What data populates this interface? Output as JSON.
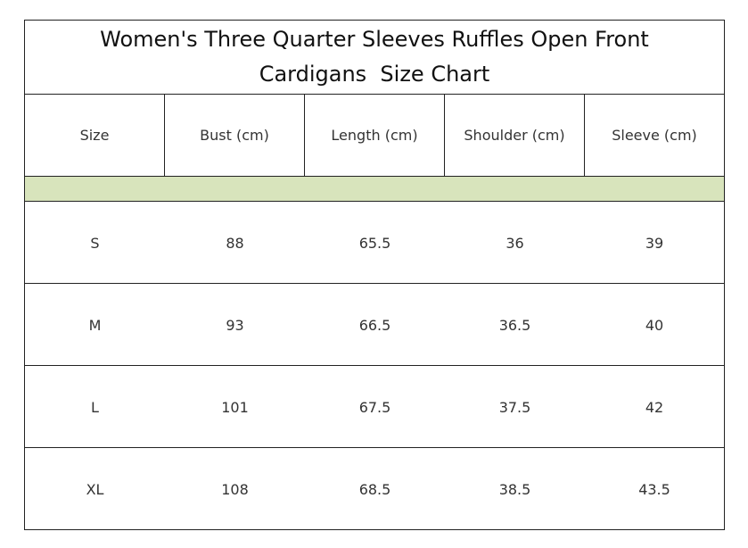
{
  "title": {
    "line1": "Women's Three Quarter Sleeves Ruffles Open Front",
    "line2": "Cardigans  Size Chart"
  },
  "table": {
    "headers": [
      "Size",
      "Bust (cm)",
      "Length (cm)",
      "Shoulder (cm)",
      "Sleeve (cm)"
    ],
    "band_color": "#d8e4bc",
    "rows": [
      [
        "S",
        "88",
        "65.5",
        "36",
        "39"
      ],
      [
        "M",
        "93",
        "66.5",
        "36.5",
        "40"
      ],
      [
        "L",
        "101",
        "67.5",
        "37.5",
        "42"
      ],
      [
        "XL",
        "108",
        "68.5",
        "38.5",
        "43.5"
      ]
    ]
  }
}
